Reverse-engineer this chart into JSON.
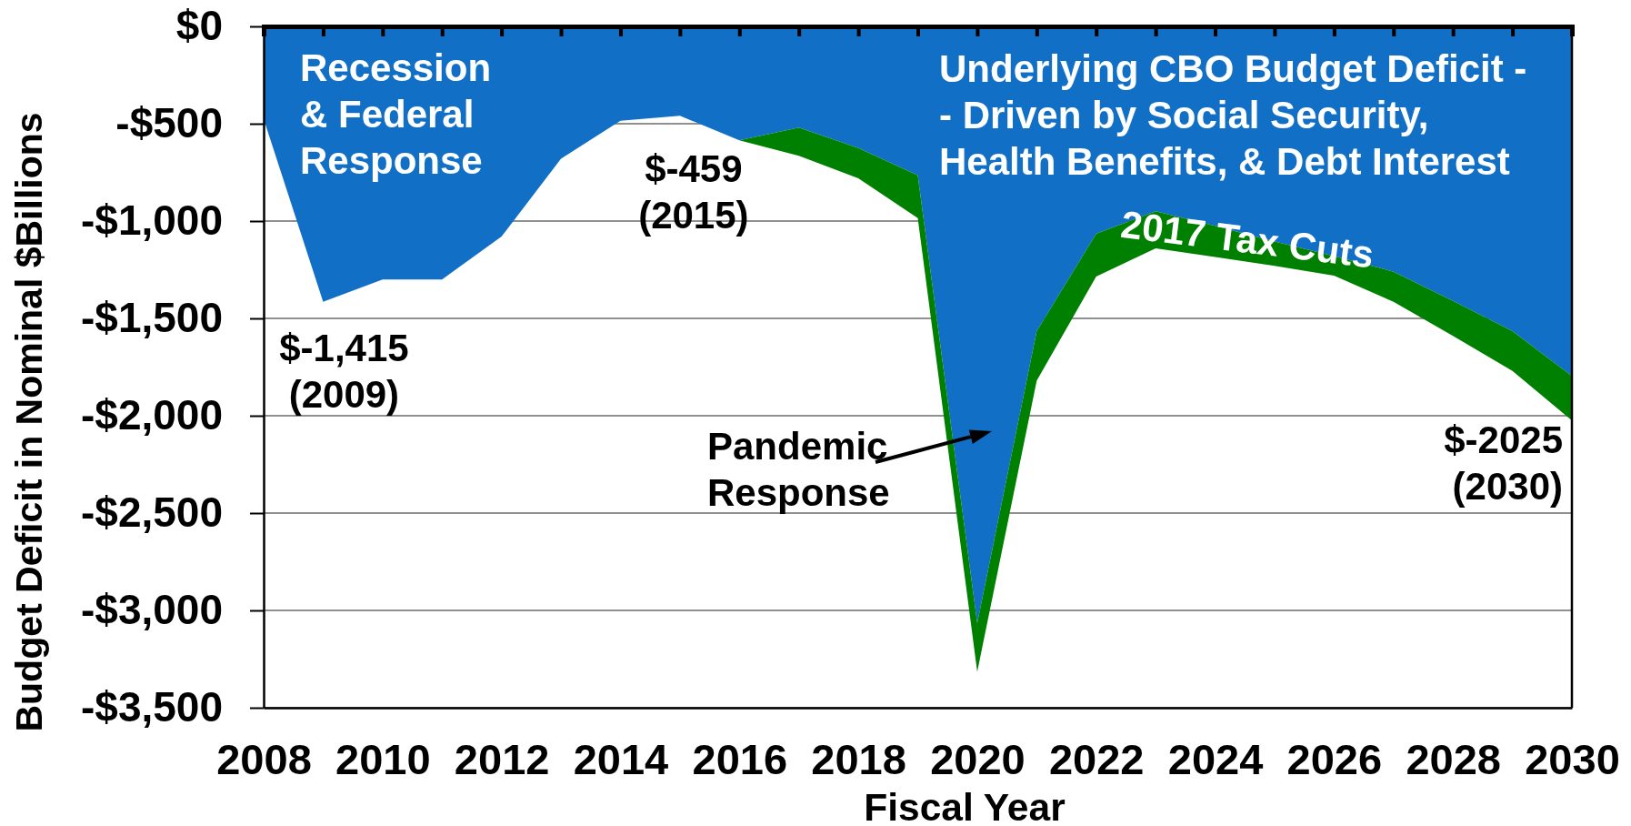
{
  "chart_data": {
    "type": "area",
    "stacked": true,
    "xlabel": "Fiscal Year",
    "ylabel": "Budget Deficit in Nominal $Billions",
    "x": [
      2008,
      2009,
      2010,
      2011,
      2012,
      2013,
      2014,
      2015,
      2016,
      2017,
      2018,
      2019,
      2020,
      2021,
      2022,
      2023,
      2024,
      2025,
      2026,
      2027,
      2028,
      2029,
      2030
    ],
    "xlim": [
      2008,
      2030
    ],
    "xticks": [
      2008,
      {
        "value": 2009,
        "label": null
      },
      2010,
      {
        "value": 2011,
        "label": null
      },
      2012,
      {
        "value": 2013,
        "label": null
      },
      2014,
      {
        "value": 2015,
        "label": null
      },
      2016,
      {
        "value": 2017,
        "label": null
      },
      2018,
      {
        "value": 2019,
        "label": null
      },
      2020,
      {
        "value": 2021,
        "label": null
      },
      2022,
      {
        "value": 2023,
        "label": null
      },
      2024,
      {
        "value": 2025,
        "label": null
      },
      2026,
      {
        "value": 2027,
        "label": null
      },
      2028,
      {
        "value": 2029,
        "label": null
      },
      2030
    ],
    "ylim": [
      -3500,
      0
    ],
    "yticks": [
      {
        "value": 0,
        "label": "$0"
      },
      {
        "value": -500,
        "label": "-$500"
      },
      {
        "value": -1000,
        "label": "-$1,000"
      },
      {
        "value": -1500,
        "label": "-$1,500"
      },
      {
        "value": -2000,
        "label": "-$2,000"
      },
      {
        "value": -2500,
        "label": "-$2,500"
      },
      {
        "value": -3000,
        "label": "-$3,000"
      },
      {
        "value": -3500,
        "label": "-$3,500"
      }
    ],
    "grid": "y",
    "series": [
      {
        "color": "#1170c6",
        "values": [
          -475,
          -1415,
          -1300,
          -1300,
          -1080,
          -680,
          -485,
          -459,
          -585,
          -520,
          -625,
          -765,
          -3065,
          -1565,
          -1065,
          -950,
          -1025,
          -1105,
          -1180,
          -1260,
          -1410,
          -1565,
          -1795
        ]
      },
      {
        "name": "2017 Tax Cuts",
        "color": "#008000",
        "values": [
          null,
          null,
          null,
          null,
          null,
          null,
          null,
          null,
          0,
          -145,
          -155,
          -220,
          -250,
          -255,
          -220,
          -190,
          -160,
          -125,
          -100,
          -155,
          -180,
          -205,
          -230
        ]
      }
    ],
    "annotations": [
      "Recession\n& Federal\nResponse",
      "Underlying CBO Budget Deficit -\n- Driven by Social Security,\nHealth Benefits, & Debt Interest",
      {
        "text": "$-1,415\n(2009)",
        "x": 2009,
        "y": -1415
      },
      {
        "text": "$-459\n(2015)",
        "x": 2015,
        "y": -459
      },
      "Pandemic\nResponse",
      {
        "text": "$-2025\n(2030)",
        "x": 2030,
        "y": -2025
      }
    ]
  }
}
